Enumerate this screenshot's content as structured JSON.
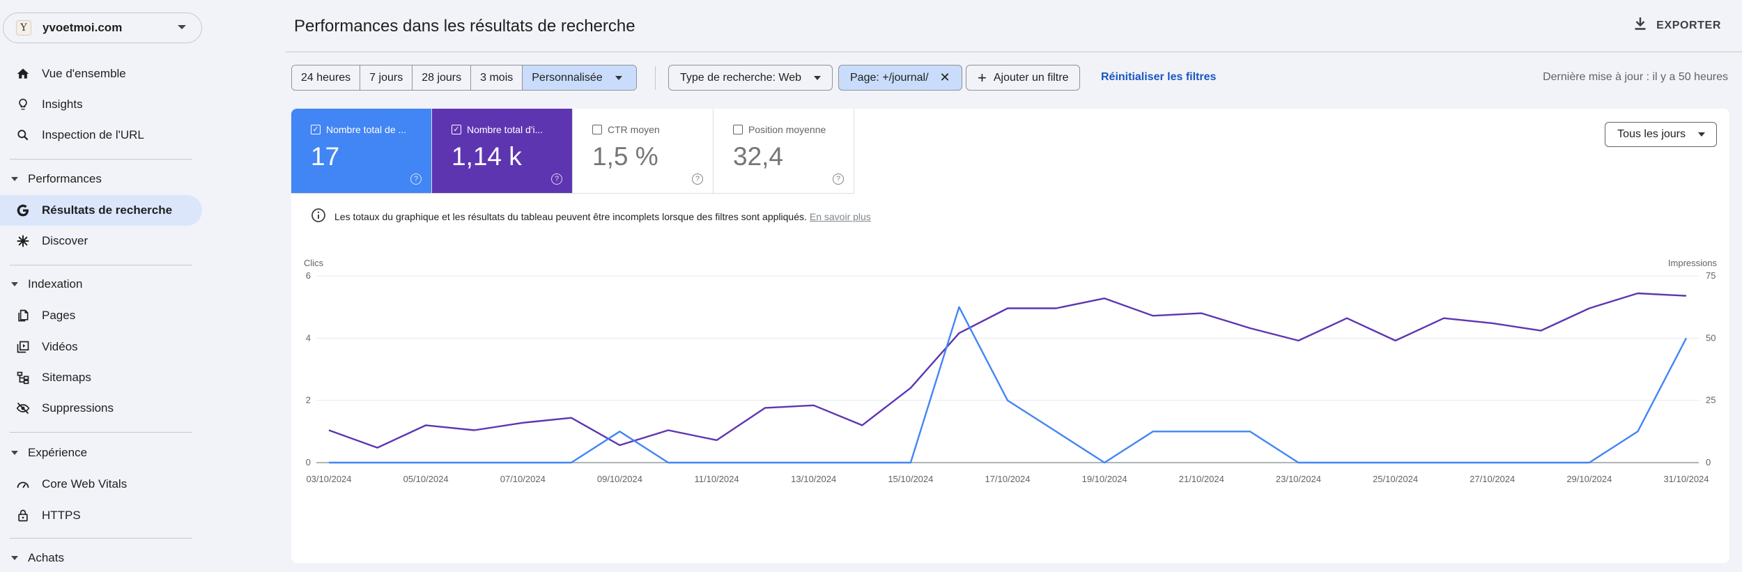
{
  "property": {
    "favicon_letter": "Y",
    "name": "yvoetmoi.com"
  },
  "sidebar": {
    "items": [
      {
        "label": "Vue d'ensemble",
        "icon": "home-icon"
      },
      {
        "label": "Insights",
        "icon": "lightbulb-icon"
      },
      {
        "label": "Inspection de l'URL",
        "icon": "search-icon"
      }
    ],
    "sections": [
      {
        "label": "Performances",
        "items": [
          {
            "label": "Résultats de recherche",
            "icon": "google-g-icon",
            "active": true
          },
          {
            "label": "Discover",
            "icon": "asterisk-icon"
          }
        ]
      },
      {
        "label": "Indexation",
        "items": [
          {
            "label": "Pages",
            "icon": "pages-icon"
          },
          {
            "label": "Vidéos",
            "icon": "video-icon"
          },
          {
            "label": "Sitemaps",
            "icon": "sitemap-icon"
          },
          {
            "label": "Suppressions",
            "icon": "eye-off-icon"
          }
        ]
      },
      {
        "label": "Expérience",
        "items": [
          {
            "label": "Core Web Vitals",
            "icon": "gauge-icon"
          },
          {
            "label": "HTTPS",
            "icon": "lock-icon"
          }
        ]
      },
      {
        "label": "Achats",
        "items": []
      }
    ]
  },
  "header": {
    "title": "Performances dans les résultats de recherche",
    "export_label": "EXPORTER"
  },
  "filters": {
    "ranges": [
      "24 heures",
      "7 jours",
      "28 jours",
      "3 mois",
      "Personnalisée"
    ],
    "selected_range": "Personnalisée",
    "search_type": "Type de recherche: Web",
    "page_filter": "Page: +/journal/",
    "add_filter": "Ajouter un filtre",
    "reset": "Réinitialiser les filtres",
    "last_update": "Dernière mise à jour : il y a 50 heures"
  },
  "metrics": [
    {
      "label": "Nombre total de ...",
      "value": "17",
      "checked": true,
      "color": "#4285f4"
    },
    {
      "label": "Nombre total d'i...",
      "value": "1,14 k",
      "checked": true,
      "color": "#5e35b1"
    },
    {
      "label": "CTR moyen",
      "value": "1,5 %",
      "checked": false
    },
    {
      "label": "Position moyenne",
      "value": "32,4",
      "checked": false
    }
  ],
  "days_select": "Tous les jours",
  "notice": {
    "text": "Les totaux du graphique et les résultats du tableau peuvent être incomplets lorsque des filtres sont appliqués.",
    "link": "En savoir plus"
  },
  "chart_data": {
    "type": "line",
    "ylabel_left": "Clics",
    "ylabel_right": "Impressions",
    "yticks_left": [
      "0",
      "2",
      "4",
      "6"
    ],
    "yticks_right": [
      "0",
      "25",
      "50",
      "75"
    ],
    "ylim_left": [
      0,
      6
    ],
    "ylim_right": [
      0,
      75
    ],
    "xtick_labels": [
      "03/10/2024",
      "05/10/2024",
      "07/10/2024",
      "09/10/2024",
      "11/10/2024",
      "13/10/2024",
      "15/10/2024",
      "17/10/2024",
      "19/10/2024",
      "21/10/2024",
      "23/10/2024",
      "25/10/2024",
      "27/10/2024",
      "29/10/2024",
      "31/10/2024"
    ],
    "x": [
      "03/10/2024",
      "04/10/2024",
      "05/10/2024",
      "06/10/2024",
      "07/10/2024",
      "08/10/2024",
      "09/10/2024",
      "10/10/2024",
      "11/10/2024",
      "12/10/2024",
      "13/10/2024",
      "14/10/2024",
      "15/10/2024",
      "16/10/2024",
      "17/10/2024",
      "18/10/2024",
      "19/10/2024",
      "20/10/2024",
      "21/10/2024",
      "22/10/2024",
      "23/10/2024",
      "24/10/2024",
      "25/10/2024",
      "26/10/2024",
      "27/10/2024",
      "28/10/2024",
      "29/10/2024",
      "30/10/2024",
      "31/10/2024"
    ],
    "series": [
      {
        "key": "clicks",
        "axis": "left",
        "color": "#4285f4",
        "values": [
          0,
          0,
          0,
          0,
          0,
          0,
          1,
          0,
          0,
          0,
          0,
          0,
          0,
          5,
          2,
          1,
          0,
          1,
          1,
          1,
          0,
          0,
          0,
          0,
          0,
          0,
          0,
          1,
          4
        ]
      },
      {
        "key": "impressions",
        "axis": "right",
        "color": "#5e35b1",
        "values": [
          13,
          6,
          15,
          13,
          16,
          18,
          7,
          13,
          9,
          22,
          23,
          15,
          30,
          52,
          62,
          62,
          66,
          59,
          60,
          54,
          49,
          58,
          49,
          58,
          56,
          53,
          62,
          68,
          67
        ]
      }
    ]
  }
}
